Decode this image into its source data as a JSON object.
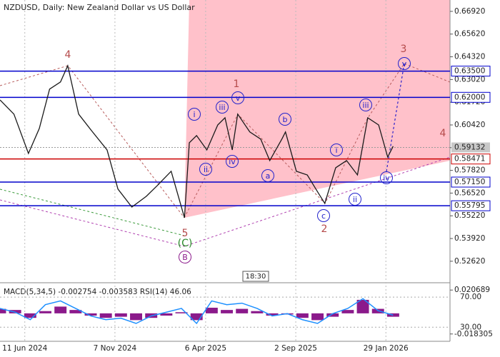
{
  "chart_data": {
    "type": "line",
    "title": "NZDUSD, Daily:  New Zealand Dollar vs US Dollar",
    "x": [
      -41,
      -18,
      6,
      24,
      41,
      59,
      71,
      89,
      112,
      136,
      154,
      177,
      201,
      219,
      242,
      264,
      272,
      284,
      301,
      319,
      331,
      343,
      352,
      372,
      390,
      405,
      425,
      431,
      449,
      467,
      485,
      496,
      514,
      532,
      550,
      567,
      585,
      600,
      609
    ],
    "series": [
      {
        "color": "#1a1a1a",
        "values": [
          0.6185,
          0.6104,
          0.5879,
          0.6022,
          0.6247,
          0.6288,
          0.6381,
          0.6104,
          0.6002,
          0.5899,
          0.5675,
          0.5572,
          0.5634,
          0.5695,
          0.5777,
          0.5511,
          0.594,
          0.5981,
          0.5899,
          0.6042,
          0.6083,
          0.5899,
          0.6104,
          0.6002,
          0.5961,
          0.5838,
          0.5961,
          0.6002,
          0.5777,
          0.5756,
          0.5654,
          0.5593,
          0.5797,
          0.5838,
          0.5756,
          0.6083,
          0.6042,
          0.5858,
          0.592
        ]
      }
    ],
    "xlim": [
      -41,
      703
    ],
    "xticks": [
      {
        "value": 0,
        "label": "11 Jun 2024"
      },
      {
        "value": 149,
        "label": "7 Nov 2024"
      },
      {
        "value": 299,
        "label": "6 Apr 2025"
      },
      {
        "value": 448,
        "label": "2 Sep 2025"
      },
      {
        "value": 597,
        "label": "29 Jan 2026"
      }
    ],
    "ylim": [
      0.5143,
      0.6757
    ],
    "yticks": [
      {
        "value": 0.6692,
        "label": "0.66920"
      },
      {
        "value": 0.6562,
        "label": "0.65620"
      },
      {
        "value": 0.6432,
        "label": "0.64320"
      },
      {
        "value": 0.6302,
        "label": "0.63020"
      },
      {
        "value": 0.6172,
        "label": "0.61720"
      },
      {
        "value": 0.6042,
        "label": "0.60420"
      },
      {
        "value": 0.5912,
        "label": "0.59120"
      },
      {
        "value": 0.5782,
        "label": "0.57820"
      },
      {
        "value": 0.5652,
        "label": "0.56520"
      },
      {
        "value": 0.5522,
        "label": "0.55220"
      },
      {
        "value": 0.5392,
        "label": "0.53920"
      },
      {
        "value": 0.5262,
        "label": "0.52620"
      }
    ],
    "levels": [
      {
        "value": 0.635,
        "label": "0.63500",
        "color": "#0000cc"
      },
      {
        "value": 0.62,
        "label": "0.62000",
        "color": "#0000cc"
      },
      {
        "value": 0.58471,
        "label": "0.58471",
        "color": "#cc0000"
      },
      {
        "value": 0.5715,
        "label": "0.57150",
        "color": "#0000cc"
      },
      {
        "value": 0.55795,
        "label": "0.55795",
        "color": "#0000cc"
      }
    ],
    "current_price": {
      "value": 0.59132,
      "label": "0.59132"
    },
    "annotations": [
      "4",
      "1",
      "3",
      "4",
      "2",
      "5",
      "(C)",
      "B",
      "i",
      "ii",
      "iii",
      "iv",
      "v",
      "a",
      "b",
      "c",
      "i",
      "ii",
      "iii",
      "iv",
      "v"
    ],
    "time_label": "18:30",
    "indicator": {
      "title": "MACD(5,34,5) -0.002754 -0.003583 RSI(14) 46.06",
      "x": [
        -41,
        -16,
        9,
        34,
        59,
        84,
        109,
        134,
        159,
        184,
        209,
        234,
        259,
        284,
        309,
        334,
        359,
        384,
        409,
        434,
        459,
        484,
        509,
        534,
        559,
        584,
        609
      ],
      "macd": [
        0.004,
        0.003,
        -0.004,
        0.002,
        0.006,
        0.003,
        -0.002,
        -0.004,
        -0.003,
        -0.006,
        -0.004,
        -0.002,
        0.001,
        -0.006,
        0.005,
        0.003,
        0.004,
        0.002,
        -0.002,
        -0.001,
        -0.004,
        -0.006,
        -0.003,
        0.003,
        0.012,
        0.004,
        -0.003
      ],
      "macd_color": "#8b1a8b",
      "rsi": [
        55,
        50,
        40,
        60,
        65,
        55,
        45,
        40,
        42,
        35,
        45,
        50,
        55,
        35,
        65,
        60,
        62,
        55,
        45,
        48,
        40,
        35,
        48,
        55,
        68,
        52,
        46.06
      ],
      "rsi_color": "#1e90ff",
      "ylim": [
        -0.0248,
        0.0259
      ],
      "yticks": [
        {
          "value": 0.020689,
          "label": "0.020689"
        },
        {
          "value": -0.018305,
          "label": "-0.018305"
        }
      ],
      "y2lim": [
        11.25,
        87.25
      ],
      "y2ticks": [
        {
          "value": 70,
          "label": "70.00"
        },
        {
          "value": 30,
          "label": "30.00"
        }
      ]
    }
  }
}
